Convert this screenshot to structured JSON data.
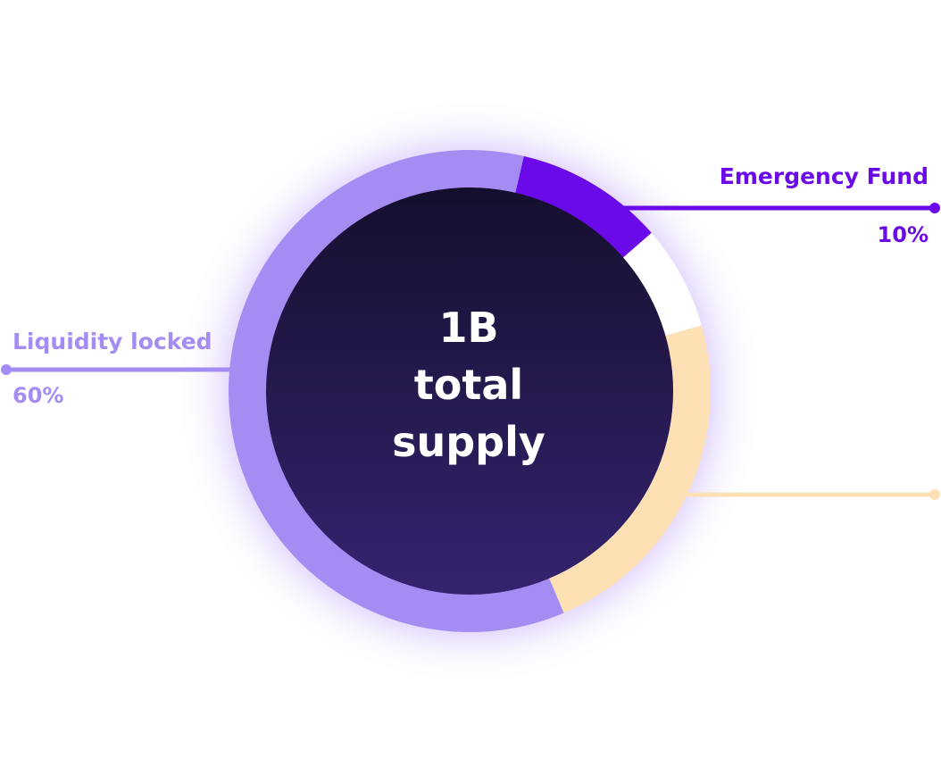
{
  "chart_data": {
    "type": "pie",
    "center_text": [
      "1B",
      "total",
      "supply"
    ],
    "slices": [
      {
        "label": "Emergency Fund",
        "value_label": "10%",
        "value": 10,
        "color": "#6a0ae8",
        "label_color": "#6a0ae8"
      },
      {
        "label": "",
        "value_label": "",
        "value": 7,
        "color": "#ffffff"
      },
      {
        "label": "",
        "value_label": "",
        "value": 23,
        "color": "#fde0b4",
        "label_color": "#fde0b4"
      },
      {
        "label": "Liquidity locked",
        "value_label": "60%",
        "value": 60,
        "color": "#a48cf3",
        "label_color": "#a48cf3"
      }
    ],
    "start_angle_deg": 13,
    "inner_color_top": "#150f2e",
    "inner_color_bottom": "#35236f",
    "glow_color": "#8e5cf5"
  }
}
